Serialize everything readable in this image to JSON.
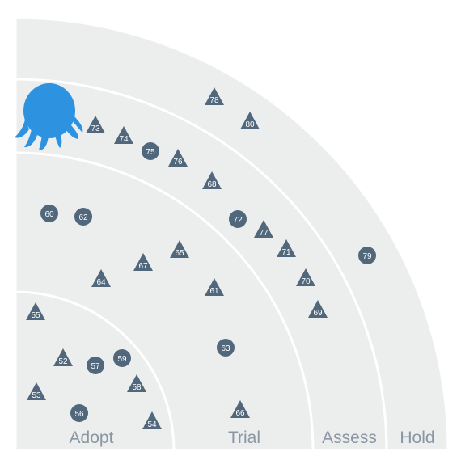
{
  "colors": {
    "ring_fill": "#eceded",
    "ring_divider": "#ffffff",
    "blip": "#51677b",
    "logo": "#2d93e1",
    "label": "#8a96a3"
  },
  "logo": {
    "icon": "octopus-icon"
  },
  "rings": [
    {
      "name": "Adopt"
    },
    {
      "name": "Trial"
    },
    {
      "name": "Assess"
    },
    {
      "name": "Hold"
    }
  ],
  "blips": [
    {
      "id": "52",
      "shape": "triangle"
    },
    {
      "id": "53",
      "shape": "triangle"
    },
    {
      "id": "54",
      "shape": "triangle"
    },
    {
      "id": "55",
      "shape": "triangle"
    },
    {
      "id": "56",
      "shape": "circle"
    },
    {
      "id": "57",
      "shape": "circle"
    },
    {
      "id": "58",
      "shape": "triangle"
    },
    {
      "id": "59",
      "shape": "circle"
    },
    {
      "id": "60",
      "shape": "circle"
    },
    {
      "id": "61",
      "shape": "triangle"
    },
    {
      "id": "62",
      "shape": "circle"
    },
    {
      "id": "63",
      "shape": "circle"
    },
    {
      "id": "64",
      "shape": "triangle"
    },
    {
      "id": "65",
      "shape": "triangle"
    },
    {
      "id": "66",
      "shape": "triangle"
    },
    {
      "id": "67",
      "shape": "triangle"
    },
    {
      "id": "68",
      "shape": "triangle"
    },
    {
      "id": "69",
      "shape": "triangle"
    },
    {
      "id": "70",
      "shape": "triangle"
    },
    {
      "id": "71",
      "shape": "triangle"
    },
    {
      "id": "72",
      "shape": "circle"
    },
    {
      "id": "73",
      "shape": "triangle"
    },
    {
      "id": "74",
      "shape": "triangle"
    },
    {
      "id": "75",
      "shape": "circle"
    },
    {
      "id": "76",
      "shape": "triangle"
    },
    {
      "id": "77",
      "shape": "triangle"
    },
    {
      "id": "78",
      "shape": "triangle"
    },
    {
      "id": "79",
      "shape": "circle"
    },
    {
      "id": "80",
      "shape": "triangle"
    }
  ]
}
